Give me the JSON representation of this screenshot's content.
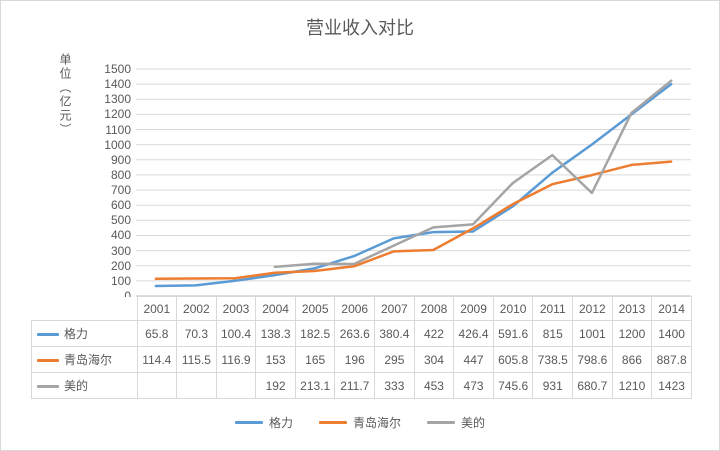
{
  "chart_data": {
    "type": "line",
    "title": "营业收入对比",
    "ylabel": "单位（亿元）",
    "categories": [
      "2001",
      "2002",
      "2003",
      "2004",
      "2005",
      "2006",
      "2007",
      "2008",
      "2009",
      "2010",
      "2011",
      "2012",
      "2013",
      "2014"
    ],
    "series": [
      {
        "name": "格力",
        "color": "#5B9BD5",
        "values": [
          65.8,
          70.3,
          100.4,
          138.3,
          182.5,
          263.6,
          380.4,
          422,
          426.4,
          591.6,
          815,
          1001,
          1200,
          1400
        ]
      },
      {
        "name": "青岛海尔",
        "color": "#ED7D31",
        "values": [
          114.4,
          115.5,
          116.9,
          153,
          165,
          196,
          295,
          304,
          447,
          605.8,
          738.5,
          798.6,
          866,
          887.8
        ]
      },
      {
        "name": "美的",
        "color": "#A5A5A5",
        "values": [
          null,
          null,
          null,
          192,
          213.1,
          211.7,
          333,
          453,
          473,
          745.6,
          931,
          680.7,
          1210,
          1423
        ]
      }
    ],
    "ylim": [
      0,
      1500
    ],
    "ytick_step": 100,
    "grid": true,
    "legend_position": "bottom",
    "data_table": true,
    "colors": {
      "gridline": "#D9D9D9",
      "axis_line": "#BFBFBF",
      "text": "#595959"
    }
  }
}
